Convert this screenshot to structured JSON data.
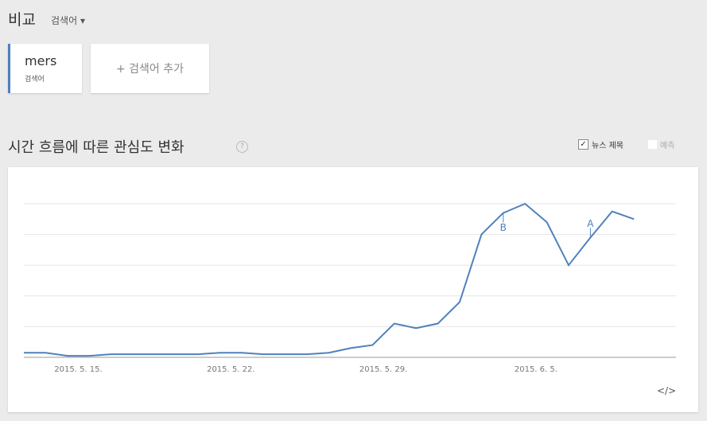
{
  "header": {
    "title": "비교",
    "dropdown": "검색어"
  },
  "terms": [
    {
      "term": "mers",
      "kind": "검색어"
    }
  ],
  "add_term": "+ 검색어 추가",
  "section": {
    "title": "시간 흐름에 따른 관심도 변화",
    "options": [
      {
        "label": "뉴스 제목",
        "checked": true
      },
      {
        "label": "예측",
        "checked": false
      }
    ]
  },
  "chart_data": {
    "type": "line",
    "categories": [
      null,
      null,
      null,
      "2015. 5. 15.",
      null,
      null,
      null,
      null,
      null,
      null,
      "2015. 5. 22.",
      null,
      null,
      null,
      null,
      null,
      null,
      "2015. 5. 29.",
      null,
      null,
      null,
      null,
      null,
      null,
      "2015. 6. 5.",
      null,
      null,
      null,
      null
    ],
    "series": [
      {
        "name": "mers",
        "color": "#4f81bd",
        "values": [
          3,
          3,
          1,
          1,
          2,
          2,
          2,
          2,
          2,
          3,
          3,
          2,
          2,
          2,
          3,
          6,
          8,
          22,
          19,
          22,
          36,
          80,
          94,
          100,
          88,
          60,
          78,
          95,
          90
        ]
      }
    ],
    "ylim": [
      0,
      100
    ],
    "yticks": [
      0,
      20,
      40,
      60,
      80,
      100
    ],
    "grid": true,
    "annotations": [
      {
        "text": "B",
        "index": 22
      },
      {
        "text": "A",
        "index": 26
      }
    ]
  },
  "embed": "</>"
}
